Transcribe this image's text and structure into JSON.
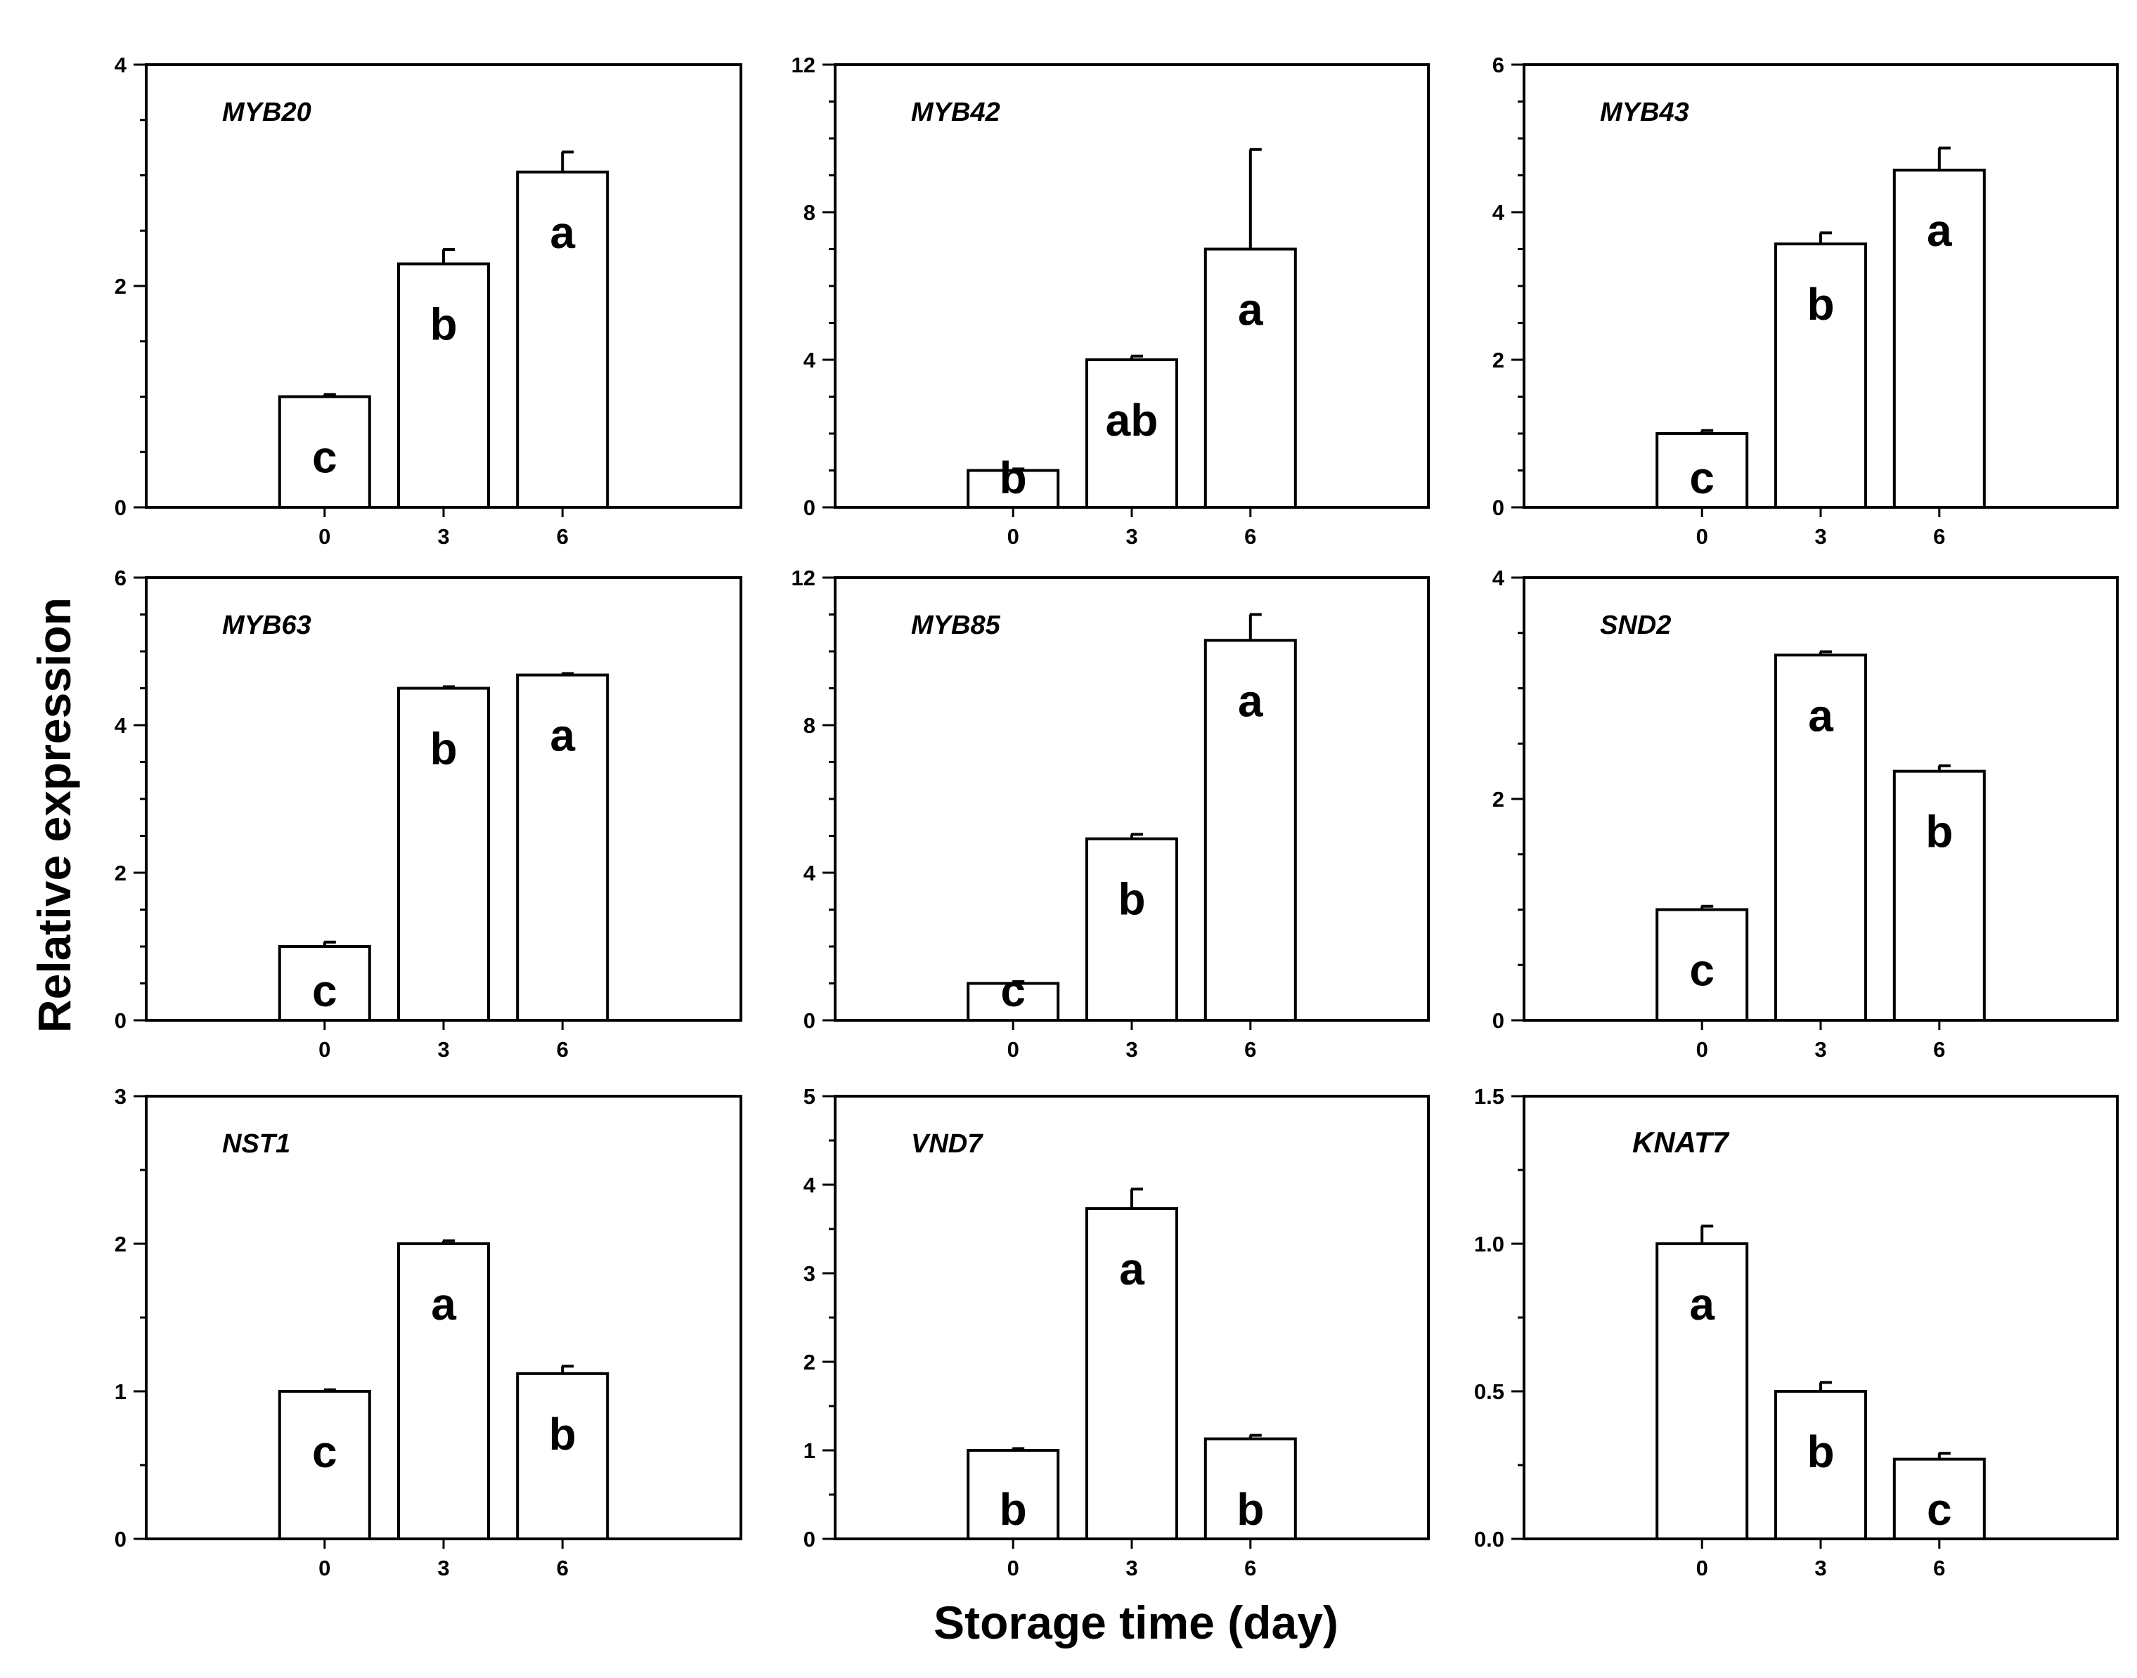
{
  "figure": {
    "ylabel": "Relative expression",
    "xlabel": "Storage time (day)"
  },
  "chart_data": [
    {
      "type": "bar",
      "title": "MYB20",
      "categories": [
        "0",
        "3",
        "6"
      ],
      "values": [
        1.0,
        2.2,
        3.03
      ],
      "errors": [
        0.02,
        0.13,
        0.18
      ],
      "letters": [
        "c",
        "b",
        "a"
      ],
      "ylim": [
        0,
        4
      ],
      "yticks": [
        "0",
        "2",
        "4"
      ],
      "minor_step": 0.5,
      "title_font": "sans"
    },
    {
      "type": "bar",
      "title": "MYB42",
      "categories": [
        "0",
        "3",
        "6"
      ],
      "values": [
        1.0,
        4.0,
        7.0
      ],
      "errors": [
        0.04,
        0.1,
        2.7
      ],
      "letters": [
        "b",
        "ab",
        "a"
      ],
      "ylim": [
        0,
        12
      ],
      "yticks": [
        "0",
        "4",
        "8",
        "12"
      ],
      "minor_step": 1,
      "title_font": "sans"
    },
    {
      "type": "bar",
      "title": "MYB43",
      "categories": [
        "0",
        "3",
        "6"
      ],
      "values": [
        1.0,
        3.57,
        4.57
      ],
      "errors": [
        0.04,
        0.15,
        0.3
      ],
      "letters": [
        "c",
        "b",
        "a"
      ],
      "ylim": [
        0,
        6
      ],
      "yticks": [
        "0",
        "2",
        "4",
        "6"
      ],
      "minor_step": 0.5,
      "title_font": "sans"
    },
    {
      "type": "bar",
      "title": "MYB63",
      "categories": [
        "0",
        "3",
        "6"
      ],
      "values": [
        1.0,
        4.5,
        4.68
      ],
      "errors": [
        0.06,
        0.02,
        0.02
      ],
      "letters": [
        "c",
        "b",
        "a"
      ],
      "ylim": [
        0,
        6
      ],
      "yticks": [
        "0",
        "2",
        "4",
        "6"
      ],
      "minor_step": 0.5,
      "title_font": "sans"
    },
    {
      "type": "bar",
      "title": "MYB85",
      "categories": [
        "0",
        "3",
        "6"
      ],
      "values": [
        1.0,
        4.92,
        10.3
      ],
      "errors": [
        0.05,
        0.12,
        0.7
      ],
      "letters": [
        "c",
        "b",
        "a"
      ],
      "ylim": [
        0,
        12
      ],
      "yticks": [
        "0",
        "4",
        "8",
        "12"
      ],
      "minor_step": 1,
      "title_font": "sans"
    },
    {
      "type": "bar",
      "title": "SND2",
      "categories": [
        "0",
        "3",
        "6"
      ],
      "values": [
        1.0,
        3.3,
        2.25
      ],
      "errors": [
        0.03,
        0.03,
        0.05
      ],
      "letters": [
        "c",
        "a",
        "b"
      ],
      "ylim": [
        0,
        4
      ],
      "yticks": [
        "0",
        "2",
        "4"
      ],
      "minor_step": 0.5,
      "title_font": "sans"
    },
    {
      "type": "bar",
      "title": "NST1",
      "categories": [
        "0",
        "3",
        "6"
      ],
      "values": [
        1.0,
        2.0,
        1.12
      ],
      "errors": [
        0.01,
        0.02,
        0.05
      ],
      "letters": [
        "c",
        "a",
        "b"
      ],
      "ylim": [
        0,
        3
      ],
      "yticks": [
        "0",
        "1",
        "2",
        "3"
      ],
      "minor_step": 0.5,
      "title_font": "sans"
    },
    {
      "type": "bar",
      "title": "VND7",
      "categories": [
        "0",
        "3",
        "6"
      ],
      "values": [
        1.0,
        3.73,
        1.13
      ],
      "errors": [
        0.02,
        0.22,
        0.04
      ],
      "letters": [
        "b",
        "a",
        "b"
      ],
      "ylim": [
        0,
        5
      ],
      "yticks": [
        "0",
        "1",
        "2",
        "3",
        "4",
        "5"
      ],
      "minor_step": 0.5,
      "title_font": "sans"
    },
    {
      "type": "bar",
      "title": "KNAT7",
      "categories": [
        "0",
        "3",
        "6"
      ],
      "values": [
        1.0,
        0.5,
        0.27
      ],
      "errors": [
        0.06,
        0.03,
        0.02
      ],
      "letters": [
        "a",
        "b",
        "c"
      ],
      "ylim": [
        0,
        1.5
      ],
      "yticks": [
        "0.0",
        "0.5",
        "1.0",
        "1.5"
      ],
      "minor_step": 0.25,
      "title_font": "serif"
    }
  ]
}
